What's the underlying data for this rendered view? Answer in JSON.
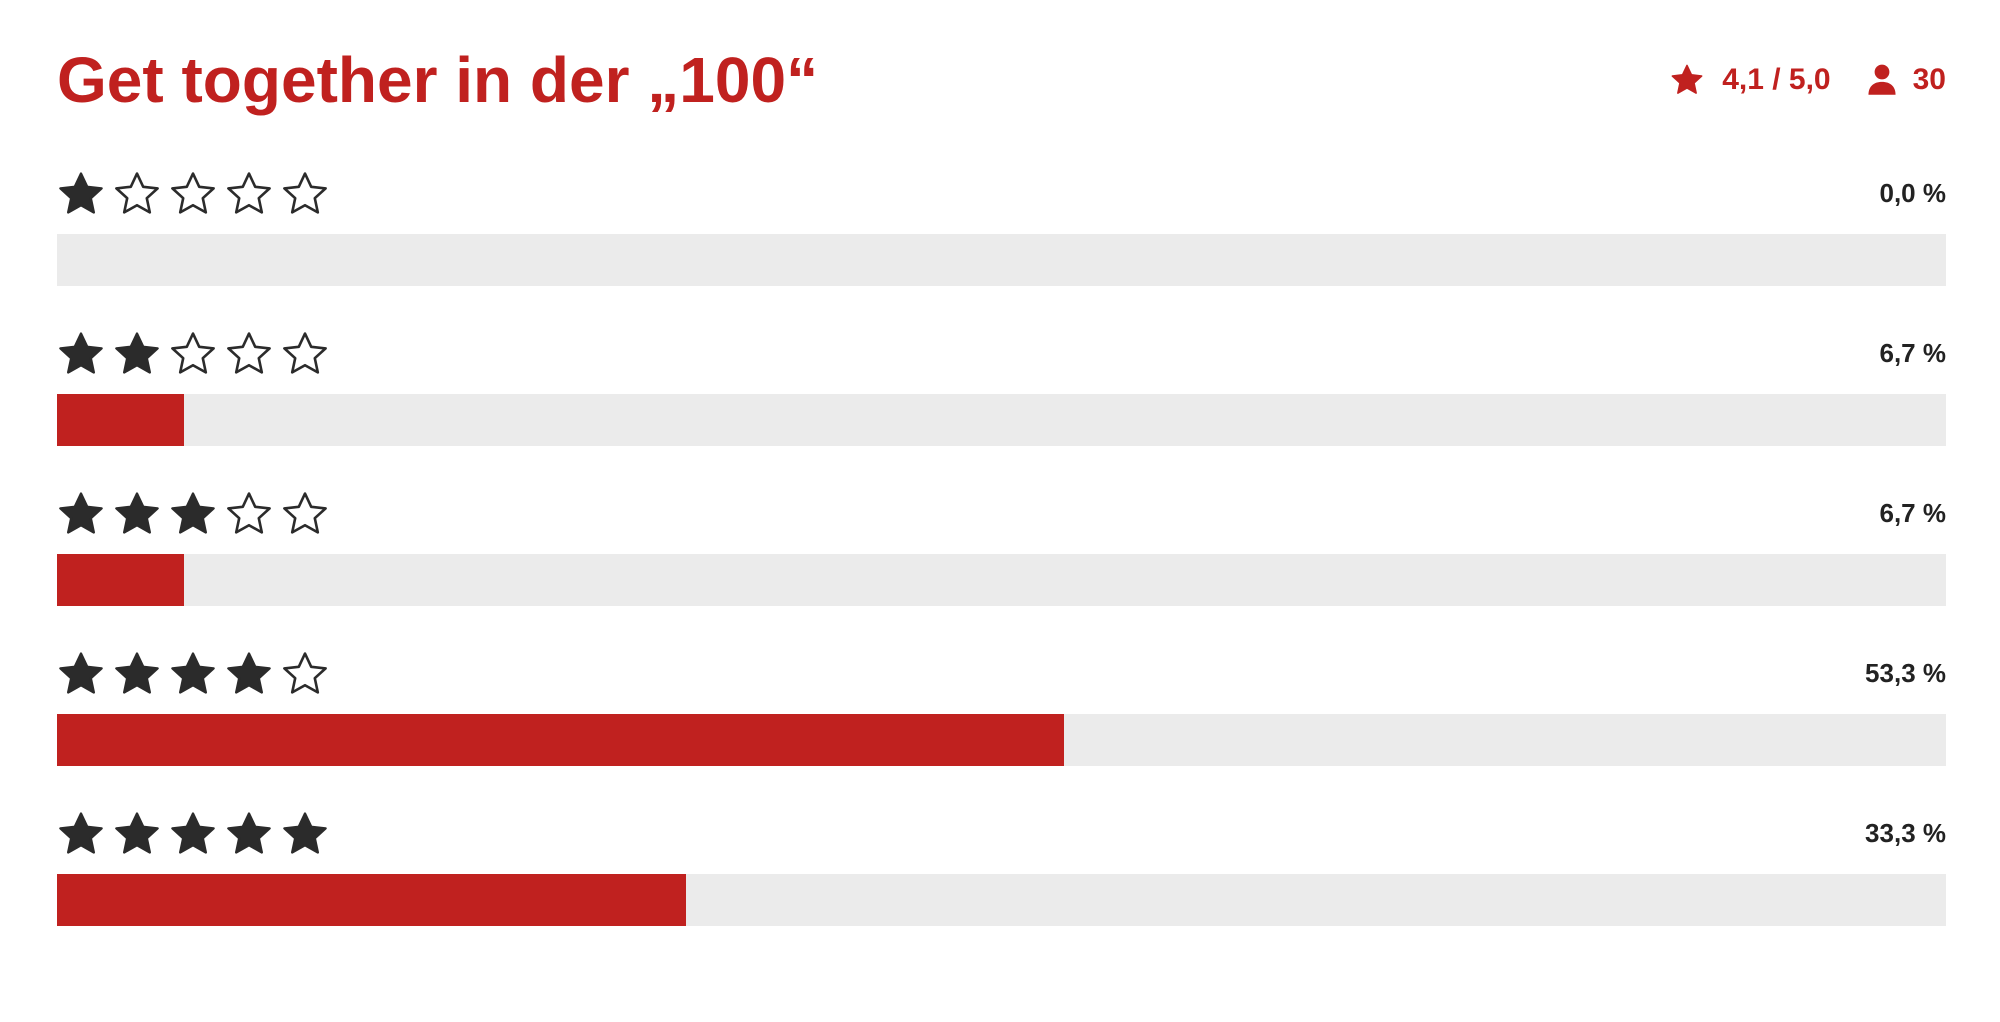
{
  "title": "Get together in der „100“",
  "summary": {
    "rating_text": "4,1 / 5,0",
    "votes_text": "30",
    "rating_icon": "star-icon",
    "votes_icon": "user-icon"
  },
  "colors": {
    "accent": "#c0211f",
    "track": "#ebebeb",
    "star": "#2b2b2b",
    "text_dark": "#222222"
  },
  "chart_data": {
    "type": "bar",
    "orientation": "horizontal",
    "categories": [
      "1 Stern",
      "2 Sterne",
      "3 Sterne",
      "4 Sterne",
      "5 Sterne"
    ],
    "stars": [
      1,
      2,
      3,
      4,
      5
    ],
    "values": [
      0.0,
      6.7,
      6.7,
      53.3,
      33.3
    ],
    "labels": [
      "0,0 %",
      "6,7 %",
      "6,7 %",
      "53,3 %",
      "33,3 %"
    ],
    "xlim": [
      0,
      100
    ],
    "unit": "%"
  }
}
